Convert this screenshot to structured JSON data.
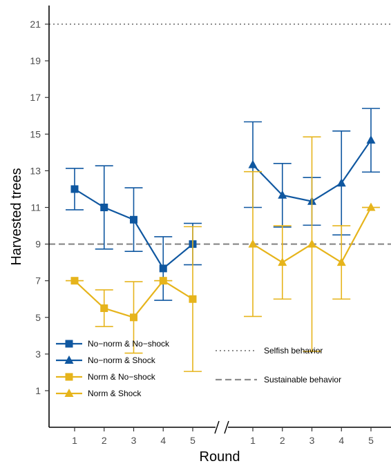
{
  "chart_data": {
    "type": "line",
    "title": "",
    "xlabel": "Round",
    "ylabel": "Harvested trees",
    "ylim": [
      -1,
      22.5
    ],
    "y_ticks": [
      1,
      3,
      5,
      7,
      9,
      11,
      13,
      15,
      17,
      19,
      21
    ],
    "panels": [
      {
        "rounds": [
          "1",
          "2",
          "3",
          "4",
          "5"
        ]
      },
      {
        "rounds": [
          "1",
          "2",
          "3",
          "4",
          "5"
        ]
      }
    ],
    "colors": {
      "no_norm": "#0f57a0",
      "norm": "#e6b41b",
      "reference": "#8c8c8c"
    },
    "series": [
      {
        "name": "No−norm & No−shock",
        "panel": 0,
        "marker": "square",
        "color": "#0f57a0",
        "values": [
          12.0,
          11.0,
          10.33,
          7.67,
          9.0
        ],
        "error_low": [
          10.87,
          8.73,
          8.6,
          5.93,
          7.87
        ],
        "error_high": [
          13.13,
          13.27,
          12.07,
          9.4,
          10.13
        ]
      },
      {
        "name": "No−norm & Shock",
        "panel": 1,
        "marker": "triangle",
        "color": "#0f57a0",
        "values": [
          13.33,
          11.67,
          11.33,
          12.33,
          14.67
        ],
        "error_low": [
          11.0,
          9.93,
          10.03,
          9.5,
          12.93
        ],
        "error_high": [
          15.67,
          13.4,
          12.63,
          15.17,
          16.4
        ]
      },
      {
        "name": "Norm & No−shock",
        "panel": 0,
        "marker": "square",
        "color": "#e6b41b",
        "values": [
          7.0,
          5.5,
          5.0,
          7.0,
          6.0
        ],
        "error_low": [
          7.0,
          4.5,
          3.05,
          7.0,
          2.05
        ],
        "error_high": [
          7.0,
          6.5,
          6.95,
          7.0,
          9.95
        ]
      },
      {
        "name": "Norm & Shock",
        "panel": 1,
        "marker": "triangle",
        "color": "#e6b41b",
        "values": [
          9.0,
          8.0,
          9.0,
          8.0,
          11.0
        ],
        "error_low": [
          5.05,
          6.0,
          3.15,
          6.0,
          11.0
        ],
        "error_high": [
          12.95,
          10.0,
          14.85,
          10.0,
          11.0
        ]
      }
    ],
    "reference_lines": [
      {
        "name": "Selfish behavior",
        "y": 21,
        "style": "dotted"
      },
      {
        "name": "Sustainable behavior",
        "y": 9,
        "style": "dashed"
      }
    ],
    "legend_position": "bottom-left"
  }
}
